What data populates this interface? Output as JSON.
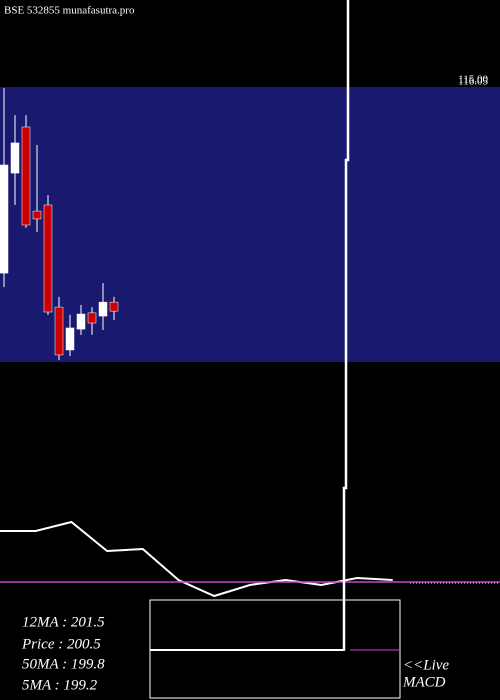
{
  "chart_data": [
    {
      "type": "candlestick",
      "title": "BSE 532855 munafasutra.pro",
      "price_labels": [
        "115.00",
        "116.05"
      ],
      "ylim": [
        0,
        100
      ],
      "band_color": "#191970",
      "up_color": "#ffffff",
      "down_color": "#cc0000",
      "open": [
        33.4,
        67.9,
        83.8,
        54.8,
        56.9,
        21.7,
        6.9,
        14.1,
        19.7,
        18.6,
        23.4
      ],
      "high": [
        97.2,
        87.9,
        87.9,
        77.6,
        60.3,
        25.2,
        19.0,
        22.4,
        21.7,
        30.0,
        25.2
      ],
      "low": [
        28.6,
        56.9,
        49.0,
        47.6,
        19.0,
        3.4,
        4.8,
        12.1,
        12.1,
        13.8,
        17.2
      ],
      "close": [
        70.7,
        78.3,
        50.0,
        52.1,
        20.0,
        5.2,
        14.5,
        19.3,
        16.2,
        23.4,
        20.3
      ]
    },
    {
      "type": "line",
      "ylim": [
        0,
        100
      ],
      "series": [
        {
          "color": "#ffffff",
          "values": [
            79,
            79,
            88,
            59,
            61,
            30,
            14,
            25,
            30,
            25,
            32,
            30
          ]
        },
        {
          "color": "#cc44cc",
          "values": [
            28,
            28,
            28,
            28,
            28,
            28,
            28,
            28,
            28,
            28,
            28,
            28
          ]
        }
      ],
      "stats": [
        "12MA : 201.5",
        "Price   : 200.5",
        "50MA : 199.8",
        "5MA : 199.2"
      ],
      "notes": [
        "<<Live",
        "MACD"
      ]
    }
  ]
}
